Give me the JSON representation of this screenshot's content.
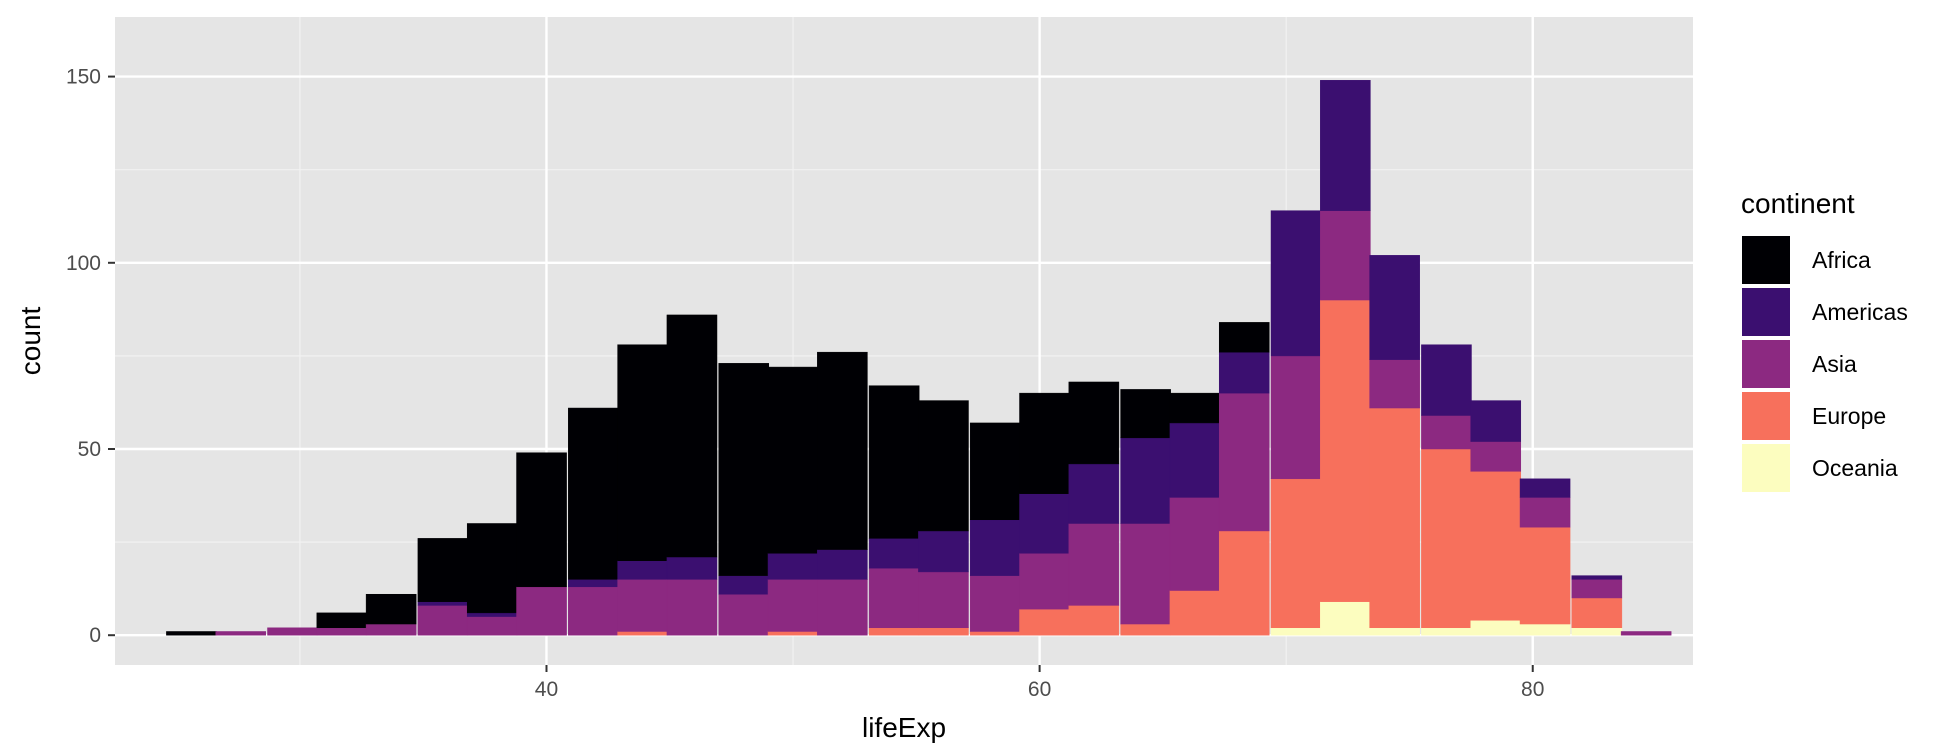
{
  "chart_data": {
    "type": "bar",
    "subtype": "stacked-histogram",
    "title": "",
    "xlabel": "lifeExp",
    "ylabel": "count",
    "xlim": [
      22.5,
      86.5
    ],
    "ylim": [
      -8,
      166
    ],
    "x_ticks": [
      40,
      60,
      80
    ],
    "y_ticks": [
      0,
      50,
      100,
      150
    ],
    "grid": true,
    "background": "#e5e5e5",
    "bin_width": 2.03,
    "bin_centers": [
      25.6,
      27.6,
      29.7,
      31.7,
      33.7,
      35.8,
      37.8,
      39.8,
      41.9,
      43.9,
      45.9,
      48.0,
      50.0,
      52.0,
      54.1,
      56.1,
      58.2,
      60.2,
      62.2,
      64.3,
      66.3,
      68.3,
      70.4,
      72.4,
      74.4,
      76.5,
      78.5,
      80.5,
      82.6,
      84.6
    ],
    "legend": {
      "title": "continent",
      "position": "right"
    },
    "series": [
      {
        "name": "Africa",
        "color": "#000004",
        "values": [
          1,
          0,
          0,
          4,
          8,
          17,
          24,
          36,
          46,
          58,
          65,
          57,
          50,
          53,
          41,
          35,
          26,
          27,
          22,
          13,
          8,
          8,
          0,
          0,
          0,
          0,
          0,
          0,
          0,
          0
        ]
      },
      {
        "name": "Americas",
        "color": "#3b0f70",
        "values": [
          0,
          0,
          0,
          0,
          0,
          1,
          1,
          0,
          2,
          5,
          6,
          5,
          7,
          8,
          8,
          11,
          15,
          16,
          16,
          23,
          20,
          11,
          39,
          35,
          28,
          19,
          11,
          5,
          1,
          0
        ]
      },
      {
        "name": "Asia",
        "color": "#8c2981",
        "values": [
          0,
          1,
          2,
          2,
          3,
          8,
          5,
          13,
          13,
          14,
          15,
          11,
          14,
          15,
          16,
          15,
          15,
          15,
          22,
          27,
          25,
          37,
          33,
          24,
          13,
          9,
          8,
          8,
          5,
          1
        ]
      },
      {
        "name": "Europe",
        "color": "#f7705c",
        "values": [
          0,
          0,
          0,
          0,
          0,
          0,
          0,
          0,
          0,
          1,
          0,
          0,
          1,
          0,
          2,
          2,
          1,
          7,
          8,
          3,
          12,
          28,
          40,
          81,
          59,
          48,
          40,
          26,
          8,
          0
        ]
      },
      {
        "name": "Oceania",
        "color": "#fcfdbf",
        "values": [
          0,
          0,
          0,
          0,
          0,
          0,
          0,
          0,
          0,
          0,
          0,
          0,
          0,
          0,
          0,
          0,
          0,
          0,
          0,
          0,
          0,
          0,
          2,
          9,
          2,
          2,
          4,
          3,
          2,
          0
        ]
      }
    ]
  }
}
